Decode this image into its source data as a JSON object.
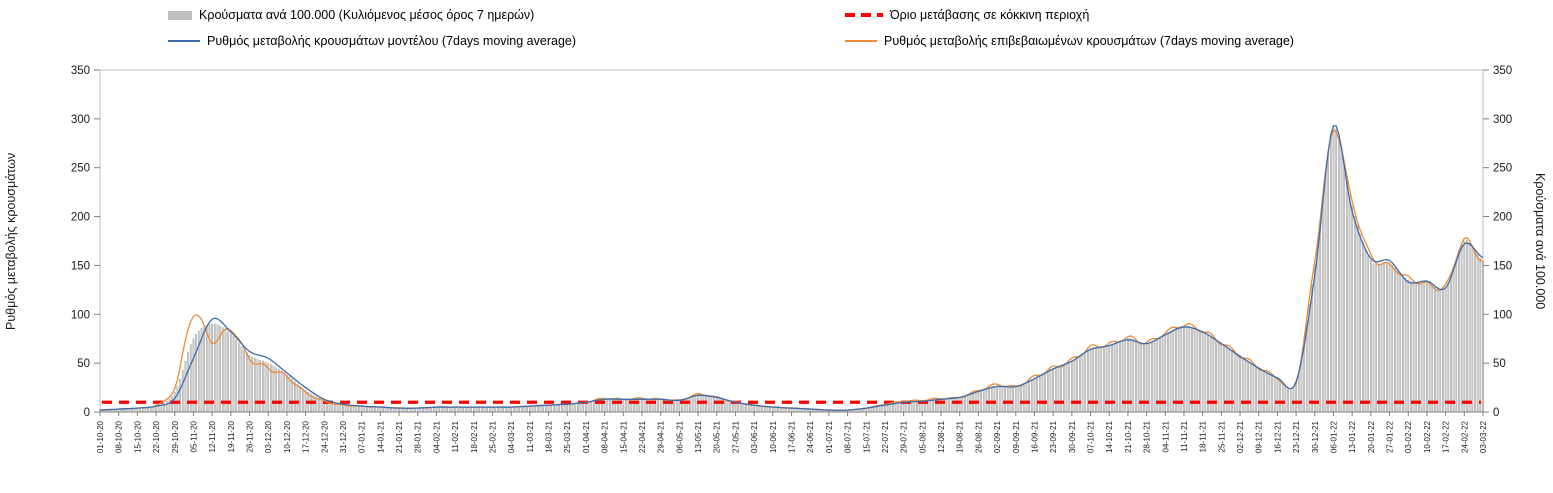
{
  "axes": {
    "left_label": "Ρυθμός μεταβολής κρουσμάτων",
    "right_label": "Κρούσματα ανά 100.000"
  },
  "chart_data": {
    "type": "combo",
    "title": "",
    "ylabel_left": "Ρυθμός μεταβολής κρουσμάτων",
    "ylabel_right": "Κρούσματα ανά 100.000",
    "ylim": [
      0,
      350
    ],
    "ytick_step": 50,
    "grid": false,
    "legend_position": "top",
    "categories": [
      "01-10-20",
      "08-10-20",
      "15-10-20",
      "22-10-20",
      "29-10-20",
      "05-11-20",
      "12-11-20",
      "19-11-20",
      "26-11-20",
      "03-12-20",
      "10-12-20",
      "17-12-20",
      "24-12-20",
      "31-12-20",
      "07-01-21",
      "14-01-21",
      "21-01-21",
      "28-01-21",
      "04-02-21",
      "11-02-21",
      "18-02-21",
      "25-02-21",
      "04-03-21",
      "11-03-21",
      "18-03-21",
      "25-03-21",
      "01-04-21",
      "08-04-21",
      "15-04-21",
      "22-04-21",
      "29-04-21",
      "06-05-21",
      "13-05-21",
      "20-05-21",
      "27-05-21",
      "03-06-21",
      "10-06-21",
      "17-06-21",
      "24-06-21",
      "01-07-21",
      "08-07-21",
      "15-07-21",
      "22-07-21",
      "29-07-21",
      "05-08-21",
      "12-08-21",
      "19-08-21",
      "26-08-21",
      "02-09-21",
      "09-09-21",
      "16-09-21",
      "23-09-21",
      "30-09-21",
      "07-10-21",
      "14-10-21",
      "21-10-21",
      "28-10-21",
      "04-11-21",
      "11-11-21",
      "18-11-21",
      "25-11-21",
      "02-12-21",
      "09-12-21",
      "16-12-21",
      "23-12-21",
      "30-12-21",
      "06-01-22",
      "13-01-22",
      "20-01-22",
      "27-01-22",
      "03-02-22",
      "10-02-22",
      "17-02-22",
      "24-02-22",
      "03-03-22"
    ],
    "series": [
      {
        "name": "Κρούσματα ανά 100.000 (Κυλιόμενος μέσος όρος 7 ημερών)",
        "type": "bar",
        "color": "#cdcdcd",
        "values": [
          2,
          3,
          4,
          7,
          20,
          75,
          90,
          80,
          58,
          50,
          38,
          22,
          12,
          8,
          6,
          5,
          4,
          4,
          5,
          5,
          5,
          5,
          5,
          6,
          7,
          8,
          10,
          14,
          13,
          14,
          13,
          12,
          18,
          15,
          10,
          7,
          5,
          4,
          3,
          2,
          2,
          4,
          8,
          10,
          12,
          13,
          15,
          22,
          27,
          26,
          35,
          45,
          52,
          65,
          68,
          75,
          70,
          80,
          88,
          82,
          70,
          58,
          45,
          35,
          30,
          150,
          290,
          210,
          155,
          152,
          135,
          132,
          128,
          175,
          155
        ]
      },
      {
        "name": "Ρυθμός μεταβολής κρουσμάτων μοντέλου (7days moving average)",
        "type": "line",
        "color": "#3c6db0",
        "values": [
          2,
          3,
          4,
          6,
          14,
          55,
          95,
          82,
          62,
          55,
          40,
          25,
          13,
          8,
          6,
          5,
          4,
          4,
          5,
          5,
          5,
          5,
          5,
          6,
          7,
          8,
          10,
          13,
          13,
          13,
          13,
          12,
          17,
          15,
          10,
          7,
          5,
          4,
          3,
          2,
          2,
          4,
          7,
          10,
          11,
          13,
          15,
          21,
          26,
          26,
          34,
          44,
          52,
          64,
          68,
          74,
          70,
          79,
          87,
          82,
          70,
          57,
          45,
          35,
          31,
          140,
          293,
          205,
          157,
          155,
          133,
          134,
          127,
          172,
          158
        ]
      },
      {
        "name": "Ρυθμός μεταβολής επιβεβαιωμένων κρουσμάτων (7days moving average)",
        "type": "line",
        "color": "#ed8b33",
        "values": [
          2,
          3,
          4,
          7,
          25,
          100,
          72,
          85,
          55,
          45,
          36,
          20,
          11,
          7,
          6,
          5,
          4,
          4,
          5,
          5,
          5,
          5,
          5,
          6,
          7,
          8,
          10,
          14,
          13,
          14,
          13,
          12,
          18,
          15,
          10,
          7,
          5,
          4,
          3,
          2,
          2,
          4,
          8,
          11,
          12,
          14,
          15,
          22,
          28,
          26,
          36,
          45,
          53,
          66,
          69,
          76,
          71,
          81,
          89,
          83,
          71,
          58,
          46,
          35,
          31,
          155,
          288,
          215,
          160,
          150,
          137,
          131,
          129,
          176,
          153
        ]
      },
      {
        "name": "Όριο μετάβασης σε κόκκινη περιοχή",
        "type": "threshold",
        "color": "#ff0000",
        "value": 10
      }
    ]
  }
}
